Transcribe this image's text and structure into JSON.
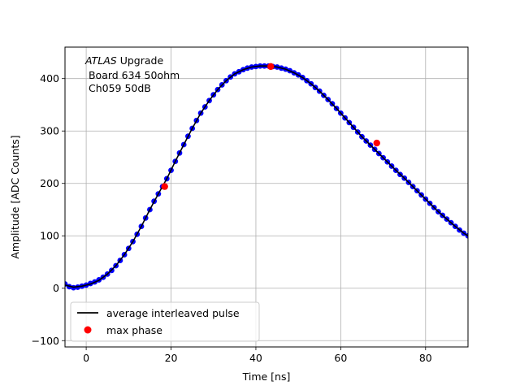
{
  "chart_data": {
    "type": "scatter",
    "title": "",
    "xlabel": "Time [ns]",
    "ylabel": "Amplitude [ADC Counts]",
    "xlim": [
      -5,
      90
    ],
    "ylim": [
      -112,
      460
    ],
    "xticks": [
      0,
      20,
      40,
      60,
      80
    ],
    "yticks": [
      -100,
      0,
      100,
      200,
      300,
      400
    ],
    "grid": true,
    "legend_position": "lower-left",
    "annotation": {
      "line1_italic": "ATLAS",
      "line1_rest": " Upgrade",
      "line2": " Board 634 50ohm",
      "line3": " Ch059 50dB"
    },
    "series": [
      {
        "name": "",
        "kind": "scatter",
        "color": "#0000ff",
        "points": [
          [
            -5,
            8
          ],
          [
            -4,
            3
          ],
          [
            -3,
            1
          ],
          [
            -2,
            2
          ],
          [
            -1,
            4
          ],
          [
            0,
            6
          ],
          [
            1,
            9
          ],
          [
            2,
            12
          ],
          [
            3,
            16
          ],
          [
            4,
            21
          ],
          [
            5,
            27
          ],
          [
            6,
            34
          ],
          [
            7,
            43
          ],
          [
            8,
            53
          ],
          [
            9,
            64
          ],
          [
            10,
            76
          ],
          [
            11,
            89
          ],
          [
            12,
            103
          ],
          [
            13,
            118
          ],
          [
            14,
            134
          ],
          [
            15,
            150
          ],
          [
            16,
            166
          ],
          [
            17,
            180
          ],
          [
            18,
            194
          ],
          [
            19,
            209
          ],
          [
            20,
            225
          ],
          [
            21,
            242
          ],
          [
            22,
            258
          ],
          [
            23,
            274
          ],
          [
            24,
            290
          ],
          [
            25,
            305
          ],
          [
            26,
            320
          ],
          [
            27,
            334
          ],
          [
            28,
            346
          ],
          [
            29,
            358
          ],
          [
            30,
            369
          ],
          [
            31,
            379
          ],
          [
            32,
            388
          ],
          [
            33,
            396
          ],
          [
            34,
            403
          ],
          [
            35,
            409
          ],
          [
            36,
            413
          ],
          [
            37,
            417
          ],
          [
            38,
            420
          ],
          [
            39,
            422
          ],
          [
            40,
            423
          ],
          [
            41,
            424
          ],
          [
            42,
            424
          ],
          [
            43,
            424
          ],
          [
            44,
            423
          ],
          [
            45,
            422
          ],
          [
            46,
            420
          ],
          [
            47,
            418
          ],
          [
            48,
            415
          ],
          [
            49,
            411
          ],
          [
            50,
            407
          ],
          [
            51,
            402
          ],
          [
            52,
            396
          ],
          [
            53,
            390
          ],
          [
            54,
            383
          ],
          [
            55,
            376
          ],
          [
            56,
            368
          ],
          [
            57,
            360
          ],
          [
            58,
            352
          ],
          [
            59,
            343
          ],
          [
            60,
            334
          ],
          [
            61,
            325
          ],
          [
            62,
            316
          ],
          [
            63,
            307
          ],
          [
            64,
            298
          ],
          [
            65,
            289
          ],
          [
            66,
            281
          ],
          [
            67,
            273
          ],
          [
            68,
            265
          ],
          [
            69,
            257
          ],
          [
            70,
            249
          ],
          [
            71,
            241
          ],
          [
            72,
            233
          ],
          [
            73,
            225
          ],
          [
            74,
            217
          ],
          [
            75,
            210
          ],
          [
            76,
            202
          ],
          [
            77,
            194
          ],
          [
            78,
            186
          ],
          [
            79,
            178
          ],
          [
            80,
            170
          ],
          [
            81,
            162
          ],
          [
            82,
            154
          ],
          [
            83,
            146
          ],
          [
            84,
            139
          ],
          [
            85,
            132
          ],
          [
            86,
            125
          ],
          [
            87,
            118
          ],
          [
            88,
            111
          ],
          [
            89,
            105
          ],
          [
            90,
            100
          ]
        ]
      },
      {
        "name": "average interleaved pulse",
        "kind": "line",
        "color": "#000000",
        "points": [
          [
            -5,
            6
          ],
          [
            -3,
            2
          ],
          [
            -1,
            4
          ],
          [
            1,
            8
          ],
          [
            3,
            15
          ],
          [
            5,
            27
          ],
          [
            7,
            43
          ],
          [
            9,
            64
          ],
          [
            11,
            89
          ],
          [
            13,
            118
          ],
          [
            15,
            150
          ],
          [
            17,
            180
          ],
          [
            19,
            209
          ],
          [
            21,
            242
          ],
          [
            23,
            274
          ],
          [
            25,
            305
          ],
          [
            27,
            334
          ],
          [
            29,
            358
          ],
          [
            31,
            379
          ],
          [
            33,
            396
          ],
          [
            35,
            409
          ],
          [
            37,
            417
          ],
          [
            39,
            422
          ],
          [
            41,
            424
          ],
          [
            43,
            424
          ],
          [
            45,
            422
          ],
          [
            47,
            418
          ],
          [
            49,
            411
          ],
          [
            51,
            402
          ],
          [
            53,
            390
          ],
          [
            55,
            376
          ],
          [
            57,
            360
          ],
          [
            59,
            343
          ],
          [
            61,
            325
          ],
          [
            63,
            307
          ],
          [
            65,
            289
          ],
          [
            67,
            273
          ],
          [
            69,
            257
          ],
          [
            71,
            241
          ],
          [
            73,
            225
          ],
          [
            75,
            210
          ],
          [
            77,
            194
          ],
          [
            79,
            178
          ],
          [
            81,
            162
          ],
          [
            83,
            146
          ],
          [
            85,
            132
          ],
          [
            87,
            118
          ],
          [
            89,
            105
          ],
          [
            90,
            100
          ]
        ]
      },
      {
        "name": "max phase",
        "kind": "marker",
        "color": "#ff0000",
        "points": [
          [
            18.5,
            194
          ],
          [
            43.5,
            423
          ],
          [
            68.5,
            277
          ]
        ]
      }
    ]
  }
}
